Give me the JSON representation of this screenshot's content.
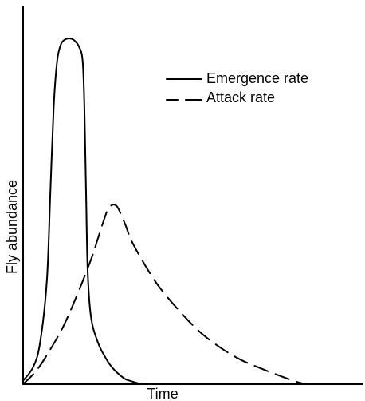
{
  "chart_data": {
    "type": "line",
    "title": "",
    "xlabel": "Time",
    "ylabel": "Fly abundance",
    "xlim": [
      0,
      100
    ],
    "ylim": [
      0,
      100
    ],
    "grid": false,
    "legend_position": "top-right",
    "series": [
      {
        "name": "Emergence rate",
        "style": "solid",
        "color": "#000000",
        "x": [
          0,
          3,
          5,
          7,
          8,
          9,
          10,
          11,
          12,
          13.5,
          15,
          16.5,
          17.5,
          18,
          18.5,
          19,
          20,
          22,
          24,
          26,
          28,
          30,
          32,
          34,
          35
        ],
        "y": [
          1,
          5,
          12,
          30,
          55,
          80,
          93,
          97.5,
          99,
          99.5,
          99,
          97,
          93,
          80,
          55,
          32,
          19,
          12,
          8,
          5,
          3,
          1.5,
          0.8,
          0.2,
          0
        ]
      },
      {
        "name": "Attack rate",
        "style": "dashed",
        "color": "#000000",
        "x": [
          0,
          4,
          8,
          12,
          16,
          20,
          22,
          24,
          25,
          26,
          27,
          28,
          30,
          32,
          36,
          40,
          46,
          52,
          58,
          64,
          70,
          76,
          80,
          83
        ],
        "y": [
          0,
          4,
          10,
          17,
          26,
          36,
          42,
          48,
          50.5,
          51.5,
          51.6,
          50.5,
          46,
          41,
          34,
          28,
          21,
          15,
          10.5,
          7,
          4.5,
          2.2,
          0.8,
          0
        ]
      }
    ]
  }
}
